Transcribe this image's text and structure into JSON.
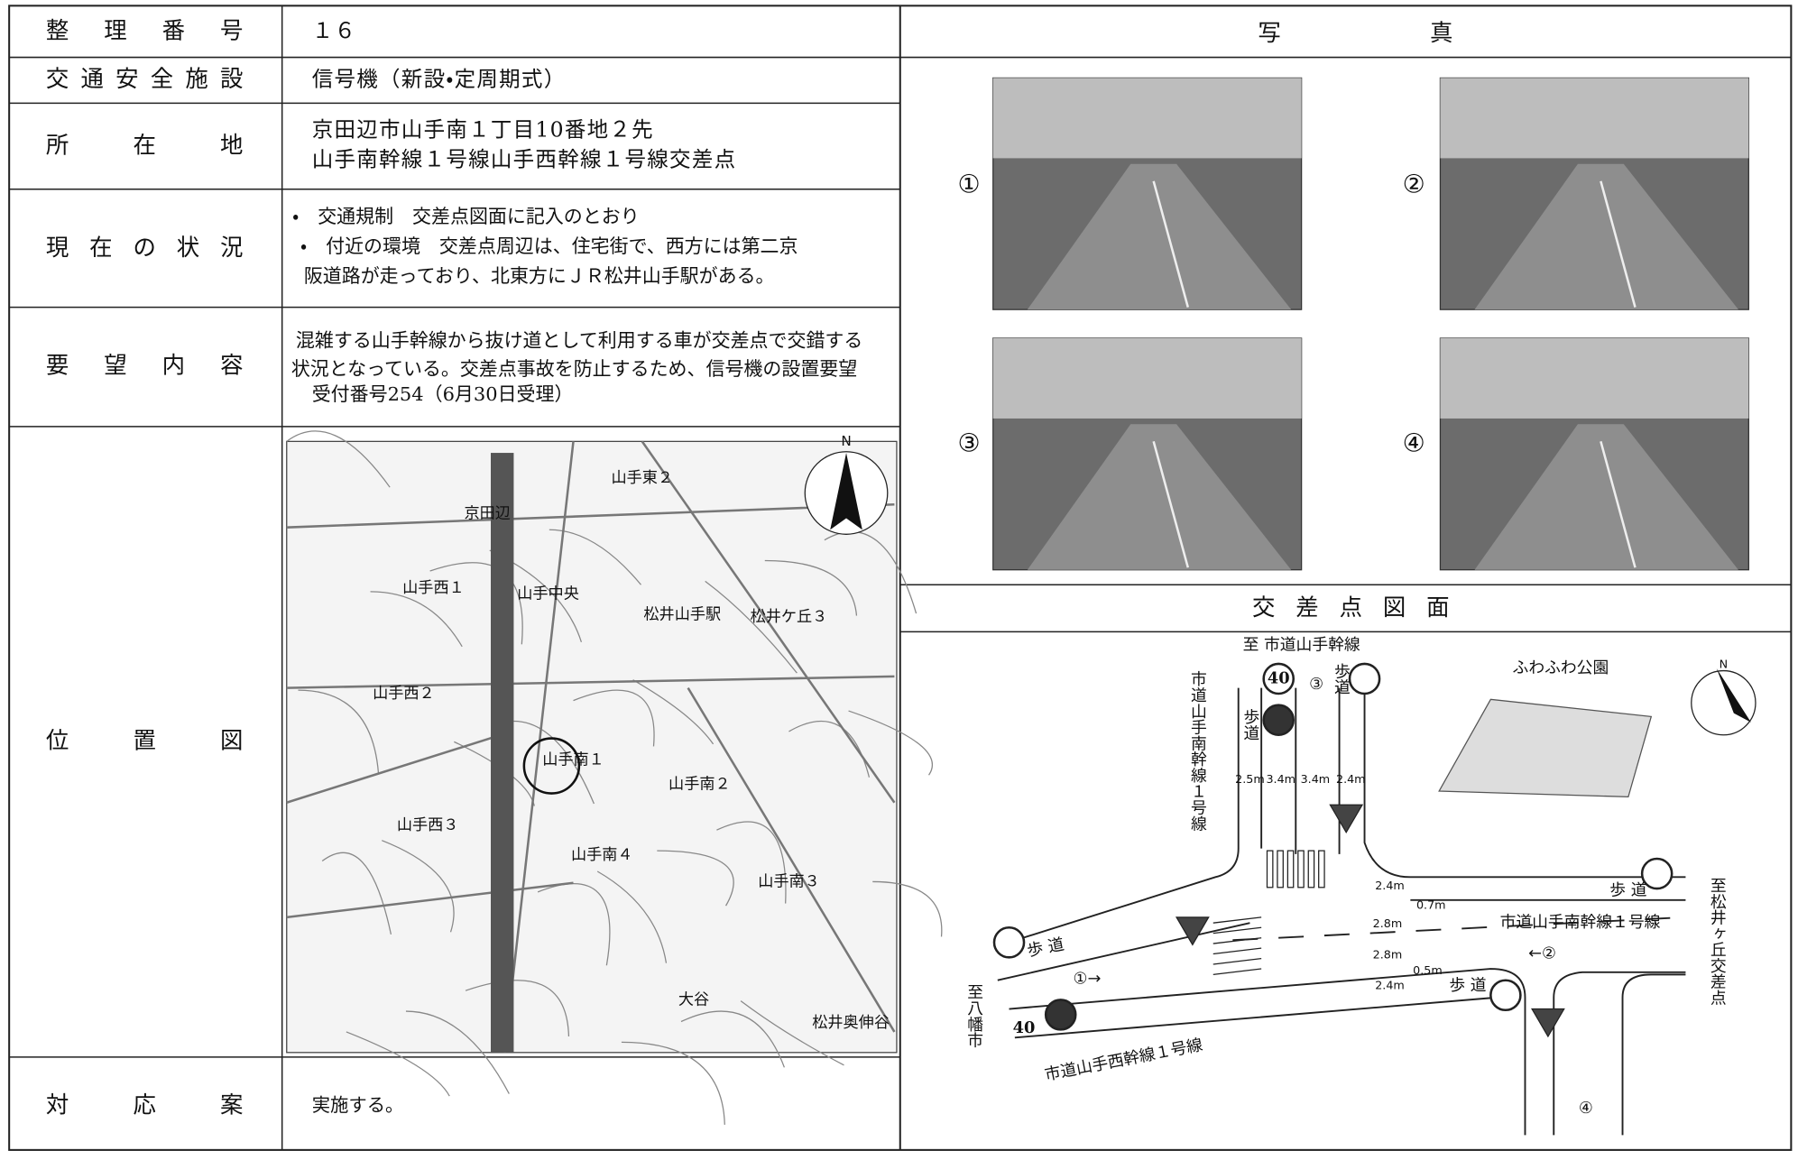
{
  "table": {
    "rows": [
      {
        "label": "整理番号",
        "content": [
          "１６"
        ]
      },
      {
        "label": "交通安全施設",
        "content": [
          "信号機（新設・定周期式）"
        ]
      },
      {
        "label": "所在地",
        "content": [
          "京田辺市山手南１丁目10番地２先",
          "山手南幹線１号線山手西幹線１号線交差点"
        ]
      },
      {
        "label": "現在の状況",
        "content": [
          "・　交通規制　交差点図面に記入のとおり",
          "・　付近の環境　交差点周辺は、住宅街で、西方には第二京",
          "阪道路が走っており、北東方にＪＲ松井山手駅がある。"
        ]
      },
      {
        "label": "要望内容",
        "content": [
          "混雑する山手幹線から抜け道として利用する車が交差点で交錯する",
          "状況となっている。交差点事故を防止するため、信号機の設置要望",
          "受付番号254（6月30日受理）"
        ]
      },
      {
        "label": "位置図",
        "content": []
      },
      {
        "label": "対応案",
        "content": [
          "実施する。"
        ]
      }
    ]
  },
  "map": {
    "labels": [
      "山手東２",
      "京田辺",
      "山手中央",
      "松井ケ丘３",
      "山手西１",
      "山手西２",
      "山手南１",
      "山手南２",
      "山手西３",
      "山手南４",
      "山手南３",
      "大谷",
      "松井奥伸谷",
      "松井山手駅",
      "N"
    ]
  },
  "photos": {
    "title": "写真",
    "labels": [
      "①",
      "②",
      "③",
      "④"
    ]
  },
  "diagram": {
    "title": "交差点図面",
    "labels": [
      "至 市道山手幹線",
      "市道山手南幹線１号線",
      "歩道",
      "③",
      "歩道",
      "2.5m",
      "3.4m",
      "3.4m",
      "2.4m",
      "ふわふわ公園",
      "2.4m",
      "0.7m",
      "2.8m",
      "2.8m",
      "0.5m",
      "2.4m",
      "歩 道",
      "市道山手南幹線１号線",
      "←②",
      "歩 道",
      "①→",
      "歩 道",
      "至八幡市",
      "市道山手西幹線１号線",
      "④",
      "至松井ヶ丘交差点",
      "40",
      "40",
      "N"
    ]
  }
}
